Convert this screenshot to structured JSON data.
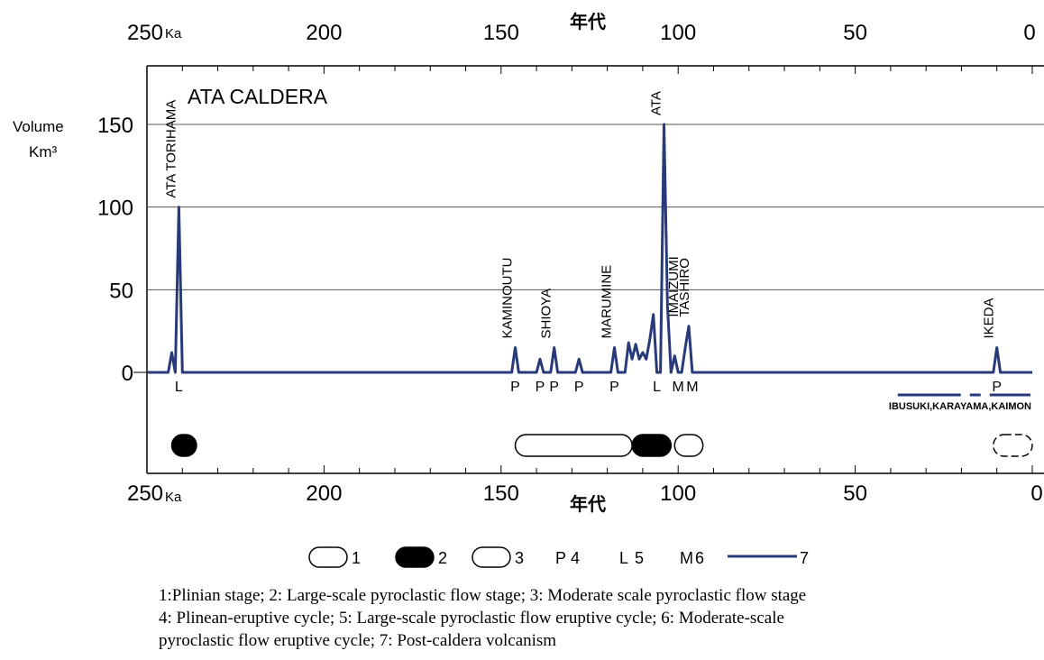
{
  "chart_data": {
    "type": "line",
    "title": "ATA CALDERA",
    "xlabel": "年代",
    "x_unit": "Ka",
    "xlim": [
      250,
      0
    ],
    "x_ticks": [
      250,
      200,
      150,
      100,
      50,
      0
    ],
    "ylabel": "Volume",
    "y_unit": "Km³",
    "ylim": [
      0,
      180
    ],
    "y_ticks": [
      0,
      50,
      100,
      150
    ],
    "grid": true,
    "line_color": "#283a7a",
    "series": [
      {
        "x": [
          250,
          244,
          243,
          242,
          241,
          240,
          239,
          238,
          147,
          146,
          145,
          140,
          139,
          138,
          136,
          135,
          134,
          129,
          128,
          127,
          119,
          118,
          117,
          115,
          114,
          113,
          112,
          111,
          110,
          109,
          108,
          107,
          106,
          105,
          104,
          103,
          102,
          101,
          100,
          99,
          98,
          97,
          96,
          95,
          12,
          11,
          10,
          9,
          0
        ],
        "y": [
          0,
          0,
          12,
          0,
          100,
          0,
          0,
          0,
          0,
          15,
          0,
          0,
          8,
          0,
          0,
          15,
          0,
          0,
          8,
          0,
          0,
          15,
          0,
          0,
          18,
          8,
          17,
          8,
          12,
          8,
          20,
          35,
          0,
          0,
          150,
          40,
          0,
          10,
          0,
          0,
          15,
          28,
          0,
          0,
          0,
          0,
          15,
          0,
          0
        ]
      }
    ],
    "annotations": [
      {
        "label": "ATA TORIHAMA",
        "x": 241,
        "y": 100
      },
      {
        "label": "KAMINOUTU",
        "x": 146,
        "y": 15
      },
      {
        "label": "SHIOYA",
        "x": 135,
        "y": 15
      },
      {
        "label": "MARUMINE",
        "x": 118,
        "y": 15
      },
      {
        "label": "ATA",
        "x": 104,
        "y": 150
      },
      {
        "label": "IMAIZUMI",
        "x": 99,
        "y": 28
      },
      {
        "label": "TASHIRO",
        "x": 96,
        "y": 28
      },
      {
        "label": "IKEDA",
        "x": 10,
        "y": 15
      }
    ],
    "cycles": [
      {
        "symbol": "L",
        "x": 241
      },
      {
        "symbol": "P",
        "x": 146
      },
      {
        "symbol": "P",
        "x": 139
      },
      {
        "symbol": "P",
        "x": 135
      },
      {
        "symbol": "P",
        "x": 128
      },
      {
        "symbol": "P",
        "x": 118
      },
      {
        "symbol": "L",
        "x": 106
      },
      {
        "symbol": "M",
        "x": 100
      },
      {
        "symbol": "M",
        "x": 96
      },
      {
        "symbol": "P",
        "x": 10
      }
    ],
    "post_caldera": {
      "label": "IBUSUKI,KARAYAMA,KAIMON",
      "from": 38,
      "to": 0
    },
    "stages": [
      {
        "type": 2,
        "from": 243,
        "to": 236
      },
      {
        "type": 1,
        "from": 146,
        "to": 113
      },
      {
        "type": 2,
        "from": 113,
        "to": 102
      },
      {
        "type": 3,
        "from": 101,
        "to": 93
      },
      {
        "type": 1,
        "from": 11,
        "to": 0,
        "dashed": true
      }
    ],
    "legend": [
      {
        "key": 1,
        "symbol": "open-rounded",
        "label": "1"
      },
      {
        "key": 2,
        "symbol": "filled-rounded",
        "label": "2"
      },
      {
        "key": 3,
        "symbol": "open-rounded",
        "label": "3"
      },
      {
        "key": 4,
        "symbol": "P",
        "label": "4"
      },
      {
        "key": 5,
        "symbol": "L",
        "label": "5"
      },
      {
        "key": 6,
        "symbol": "M",
        "label": "6"
      },
      {
        "key": 7,
        "symbol": "line",
        "label": "7"
      }
    ]
  },
  "caption": {
    "line1": "1:Plinian stage;   2: Large-scale pyroclastic flow stage;   3: Moderate scale pyroclastic flow stage",
    "line2": "4: Plinean-eruptive cycle; 5: Large-scale pyroclastic flow eruptive cycle; 6: Moderate-scale",
    "line3": "pyroclastic flow eruptive cycle; 7: Post-caldera volcanism"
  }
}
